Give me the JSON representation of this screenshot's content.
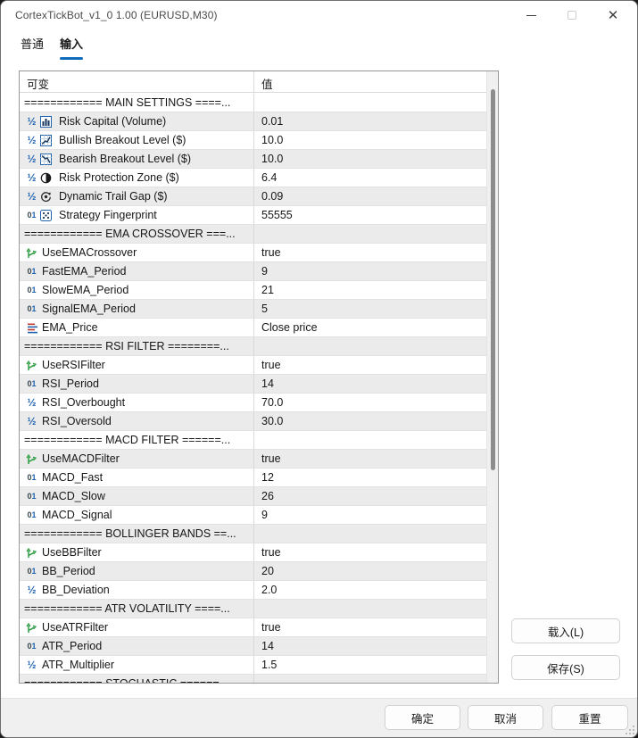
{
  "window": {
    "title": "CortexTickBot_v1_0 1.00 (EURUSD,M30)",
    "controls": {
      "minimize": "minimize",
      "maximize": "maximize (disabled)",
      "close": "close"
    }
  },
  "tabs": [
    {
      "label": "普通",
      "active": false
    },
    {
      "label": "输入",
      "active": true
    }
  ],
  "table": {
    "headers": {
      "variable": "可变",
      "value": "值"
    },
    "rows": [
      {
        "type": "separator",
        "text": "============ MAIN SETTINGS ====..."
      },
      {
        "type": "param",
        "icon": "double-type-icon",
        "extra_icon": "bar-chart-icon",
        "name": "Risk Capital (Volume)",
        "value": "0.01"
      },
      {
        "type": "param",
        "icon": "double-type-icon",
        "extra_icon": "chart-up-icon",
        "name": "Bullish Breakout Level ($)",
        "value": "10.0"
      },
      {
        "type": "param",
        "icon": "double-type-icon",
        "extra_icon": "chart-down-icon",
        "name": "Bearish Breakout Level ($)",
        "value": "10.0"
      },
      {
        "type": "param",
        "icon": "double-type-icon",
        "extra_icon": "half-circle-icon",
        "name": "Risk Protection Zone ($)",
        "value": "6.4"
      },
      {
        "type": "param",
        "icon": "double-type-icon",
        "extra_icon": "trail-circle-icon",
        "name": "Dynamic Trail Gap ($)",
        "value": "0.09"
      },
      {
        "type": "param",
        "icon": "integer-type-icon",
        "extra_icon": "dice-icon",
        "name": "Strategy Fingerprint",
        "value": "55555"
      },
      {
        "type": "separator",
        "text": "============ EMA CROSSOVER ===..."
      },
      {
        "type": "param",
        "icon": "bool-type-icon",
        "name": "UseEMACrossover",
        "value": "true"
      },
      {
        "type": "param",
        "icon": "integer-type-icon",
        "name": "FastEMA_Period",
        "value": "9"
      },
      {
        "type": "param",
        "icon": "integer-type-icon",
        "name": "SlowEMA_Period",
        "value": "21"
      },
      {
        "type": "param",
        "icon": "integer-type-icon",
        "name": "SignalEMA_Period",
        "value": "5"
      },
      {
        "type": "param",
        "icon": "enum-type-icon",
        "name": "EMA_Price",
        "value": "Close price"
      },
      {
        "type": "separator",
        "text": "============ RSI FILTER ========..."
      },
      {
        "type": "param",
        "icon": "bool-type-icon",
        "name": "UseRSIFilter",
        "value": "true"
      },
      {
        "type": "param",
        "icon": "integer-type-icon",
        "name": "RSI_Period",
        "value": "14"
      },
      {
        "type": "param",
        "icon": "double-type-icon",
        "name": "RSI_Overbought",
        "value": "70.0"
      },
      {
        "type": "param",
        "icon": "double-type-icon",
        "name": "RSI_Oversold",
        "value": "30.0"
      },
      {
        "type": "separator",
        "text": "============ MACD FILTER ======..."
      },
      {
        "type": "param",
        "icon": "bool-type-icon",
        "name": "UseMACDFilter",
        "value": "true"
      },
      {
        "type": "param",
        "icon": "integer-type-icon",
        "name": "MACD_Fast",
        "value": "12"
      },
      {
        "type": "param",
        "icon": "integer-type-icon",
        "name": "MACD_Slow",
        "value": "26"
      },
      {
        "type": "param",
        "icon": "integer-type-icon",
        "name": "MACD_Signal",
        "value": "9"
      },
      {
        "type": "separator",
        "text": "============ BOLLINGER BANDS ==..."
      },
      {
        "type": "param",
        "icon": "bool-type-icon",
        "name": "UseBBFilter",
        "value": "true"
      },
      {
        "type": "param",
        "icon": "integer-type-icon",
        "name": "BB_Period",
        "value": "20"
      },
      {
        "type": "param",
        "icon": "double-type-icon",
        "name": "BB_Deviation",
        "value": "2.0"
      },
      {
        "type": "separator",
        "text": "============ ATR VOLATILITY ====..."
      },
      {
        "type": "param",
        "icon": "bool-type-icon",
        "name": "UseATRFilter",
        "value": "true"
      },
      {
        "type": "param",
        "icon": "integer-type-icon",
        "name": "ATR_Period",
        "value": "14"
      },
      {
        "type": "param",
        "icon": "double-type-icon",
        "name": "ATR_Multiplier",
        "value": "1.5"
      },
      {
        "type": "separator",
        "text": "============ STOCHASTIC ======..."
      }
    ]
  },
  "side_buttons": [
    {
      "label": "载入(L)"
    },
    {
      "label": "保存(S)"
    }
  ],
  "footer_buttons": [
    {
      "label": "确定"
    },
    {
      "label": "取消"
    },
    {
      "label": "重置"
    }
  ],
  "colors": {
    "accent_blue": "#0f6cbd",
    "row_alt_gray": "#ebebeb",
    "icon_blue": "#1f62b0",
    "bool_green": "#2f9e44",
    "enum_red": "#c0392b",
    "footer_gray": "#f0f0f0"
  }
}
